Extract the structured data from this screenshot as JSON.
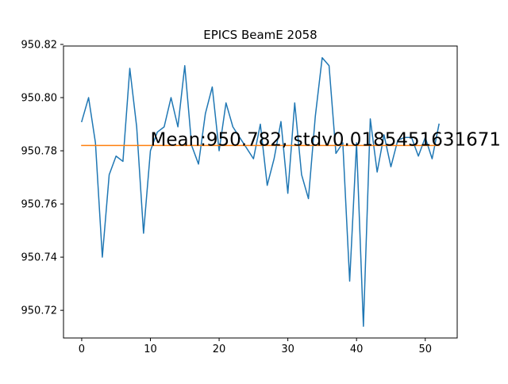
{
  "chart_data": {
    "type": "line",
    "title": "EPICS BeamE 2058",
    "xlabel": "",
    "ylabel": "",
    "xlim": [
      -2.65,
      54.65
    ],
    "ylim": [
      950.7096,
      950.8194
    ],
    "x_ticks": [
      0,
      10,
      20,
      30,
      40,
      50
    ],
    "x_tick_labels": [
      "0",
      "10",
      "20",
      "30",
      "40",
      "50"
    ],
    "y_ticks": [
      950.72,
      950.74,
      950.76,
      950.78,
      950.8,
      950.82
    ],
    "y_tick_labels": [
      "950.72",
      "950.74",
      "950.76",
      "950.78",
      "950.80",
      "950.82"
    ],
    "grid": false,
    "legend": "none",
    "annotation": {
      "text": "Mean:950.782, stdv0.0185451631671",
      "x": 10,
      "y": 950.782
    },
    "series": [
      {
        "color": "#1f77b4",
        "x": [
          0,
          1,
          2,
          3,
          4,
          5,
          6,
          7,
          8,
          9,
          10,
          11,
          12,
          13,
          14,
          15,
          16,
          17,
          18,
          19,
          20,
          21,
          22,
          23,
          24,
          25,
          26,
          27,
          28,
          29,
          30,
          31,
          32,
          33,
          34,
          35,
          36,
          37,
          38,
          39,
          40,
          41,
          42,
          43,
          44,
          45,
          46,
          47,
          48,
          49,
          50,
          51,
          52
        ],
        "values": [
          950.791,
          950.8,
          950.783,
          950.74,
          950.771,
          950.778,
          950.776,
          950.811,
          950.789,
          950.749,
          950.78,
          950.787,
          950.789,
          950.8,
          950.789,
          950.812,
          950.782,
          950.775,
          950.794,
          950.804,
          950.78,
          950.798,
          950.789,
          950.785,
          950.781,
          950.777,
          950.79,
          950.767,
          950.777,
          950.791,
          950.764,
          950.798,
          950.771,
          950.762,
          950.793,
          950.815,
          950.812,
          950.779,
          950.783,
          950.731,
          950.783,
          950.714,
          950.792,
          950.772,
          950.786,
          950.774,
          950.784,
          950.785,
          950.785,
          950.778,
          950.785,
          950.777,
          950.79
        ]
      },
      {
        "color": "#ff7f0e",
        "x": [
          0,
          52
        ],
        "values": [
          950.782,
          950.782
        ]
      }
    ]
  }
}
